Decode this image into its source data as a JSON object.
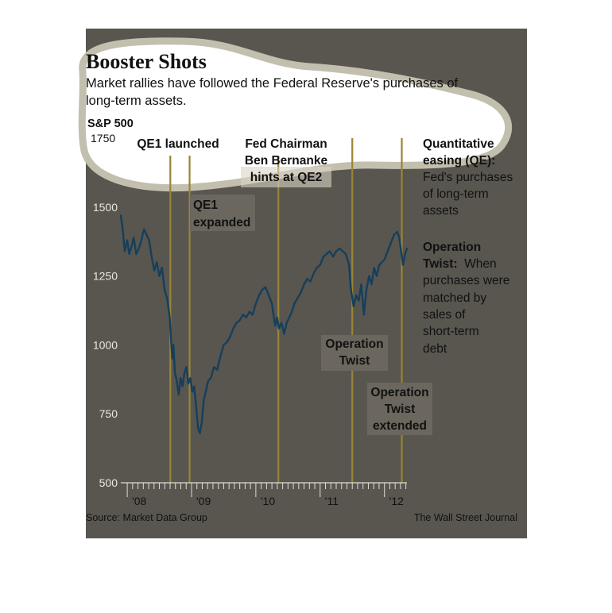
{
  "chart_data": {
    "type": "line",
    "title": "Booster Shots",
    "subtitle_lines": [
      "Market rallies have followed the Federal Reserve's purchases of",
      "long-term assets."
    ],
    "ylabel": "S&P 500",
    "ylim": [
      500,
      1750
    ],
    "yticks": [
      "1750",
      "1500",
      "1250",
      "1000",
      "750",
      "500"
    ],
    "yticks_values": [
      1750,
      1500,
      1250,
      1000,
      750,
      500
    ],
    "x_range": [
      2007.9,
      2012.35
    ],
    "xticks": [
      {
        "label": "'08",
        "value": 2008
      },
      {
        "label": "'09",
        "value": 2009
      },
      {
        "label": "'10",
        "value": 2010
      },
      {
        "label": "'11",
        "value": 2011
      },
      {
        "label": "'12",
        "value": 2012
      }
    ],
    "series": [
      {
        "color": "#163f5c",
        "x": [
          2007.9,
          2007.93,
          2007.96,
          2008.0,
          2008.03,
          2008.07,
          2008.1,
          2008.14,
          2008.18,
          2008.22,
          2008.26,
          2008.3,
          2008.34,
          2008.38,
          2008.42,
          2008.46,
          2008.5,
          2008.54,
          2008.58,
          2008.62,
          2008.66,
          2008.7,
          2008.72,
          2008.74,
          2008.77,
          2008.8,
          2008.83,
          2008.86,
          2008.89,
          2008.92,
          2008.95,
          2008.98,
          2009.01,
          2009.04,
          2009.07,
          2009.1,
          2009.13,
          2009.16,
          2009.19,
          2009.22,
          2009.26,
          2009.3,
          2009.35,
          2009.4,
          2009.45,
          2009.5,
          2009.55,
          2009.6,
          2009.65,
          2009.7,
          2009.75,
          2009.8,
          2009.85,
          2009.9,
          2009.95,
          2010.0,
          2010.05,
          2010.1,
          2010.15,
          2010.2,
          2010.25,
          2010.3,
          2010.33,
          2010.36,
          2010.4,
          2010.44,
          2010.48,
          2010.52,
          2010.56,
          2010.6,
          2010.65,
          2010.7,
          2010.75,
          2010.8,
          2010.85,
          2010.9,
          2010.95,
          2011.0,
          2011.05,
          2011.1,
          2011.15,
          2011.2,
          2011.25,
          2011.3,
          2011.35,
          2011.4,
          2011.45,
          2011.48,
          2011.52,
          2011.56,
          2011.6,
          2011.64,
          2011.68,
          2011.72,
          2011.76,
          2011.8,
          2011.84,
          2011.88,
          2011.92,
          2011.96,
          2012.0,
          2012.05,
          2012.1,
          2012.15,
          2012.2,
          2012.23,
          2012.26,
          2012.29,
          2012.32,
          2012.35
        ],
        "values": [
          1470,
          1420,
          1340,
          1380,
          1330,
          1360,
          1390,
          1330,
          1350,
          1380,
          1420,
          1400,
          1380,
          1320,
          1270,
          1300,
          1250,
          1280,
          1200,
          1170,
          1100,
          950,
          1000,
          900,
          870,
          820,
          880,
          850,
          900,
          920,
          860,
          880,
          830,
          850,
          780,
          700,
          680,
          720,
          800,
          830,
          870,
          880,
          920,
          910,
          960,
          1000,
          1010,
          1030,
          1060,
          1080,
          1090,
          1110,
          1100,
          1120,
          1110,
          1150,
          1180,
          1200,
          1210,
          1180,
          1150,
          1070,
          1100,
          1060,
          1080,
          1040,
          1080,
          1100,
          1120,
          1150,
          1170,
          1190,
          1220,
          1240,
          1230,
          1260,
          1280,
          1290,
          1320,
          1330,
          1340,
          1320,
          1340,
          1350,
          1340,
          1330,
          1290,
          1200,
          1140,
          1180,
          1160,
          1220,
          1110,
          1200,
          1250,
          1220,
          1280,
          1250,
          1290,
          1300,
          1310,
          1340,
          1370,
          1400,
          1410,
          1390,
          1340,
          1290,
          1330,
          1350
        ]
      }
    ],
    "events": [
      {
        "name": "QE1 launched",
        "x": 2008.67,
        "kind": "qe"
      },
      {
        "name": "QE1 expanded",
        "x": 2008.97,
        "kind": "qe"
      },
      {
        "name": "Fed Chairman Ben Bernanke hints at QE2",
        "x": 2010.35,
        "kind": "qe"
      },
      {
        "name": "Operation Twist",
        "x": 2011.5,
        "kind": "twist"
      },
      {
        "name": "Operation Twist extended",
        "x": 2012.27,
        "kind": "twist"
      }
    ],
    "annotations": {
      "qe1_launched": "QE1 launched",
      "qe1_expanded": [
        "QE1",
        "expanded"
      ],
      "bernanke": [
        "Fed Chairman",
        "Ben Bernanke",
        "hints at QE2"
      ],
      "twist": [
        "Operation",
        "Twist"
      ],
      "twist_extended": [
        "Operation",
        "Twist",
        "extended"
      ]
    },
    "legend": {
      "qe_title": [
        "Quantitative",
        "easing (QE):"
      ],
      "qe_desc": [
        "Fed's purchases",
        "of long-term",
        "assets"
      ],
      "twist_title": [
        "Operation",
        "Twist:"
      ],
      "twist_desc": [
        "When",
        "purchases were",
        "matched by",
        "sales of",
        "short-term",
        "debt"
      ]
    },
    "source": "Source: Market Data Group",
    "credit": "The Wall Street Journal",
    "colors": {
      "background": "#58564f",
      "line": "#163f5c",
      "event_line": "#9a8436",
      "label_box": "#6b675e",
      "blob_fill": "#ffffff",
      "blob_outline": "#c3bfae"
    }
  }
}
